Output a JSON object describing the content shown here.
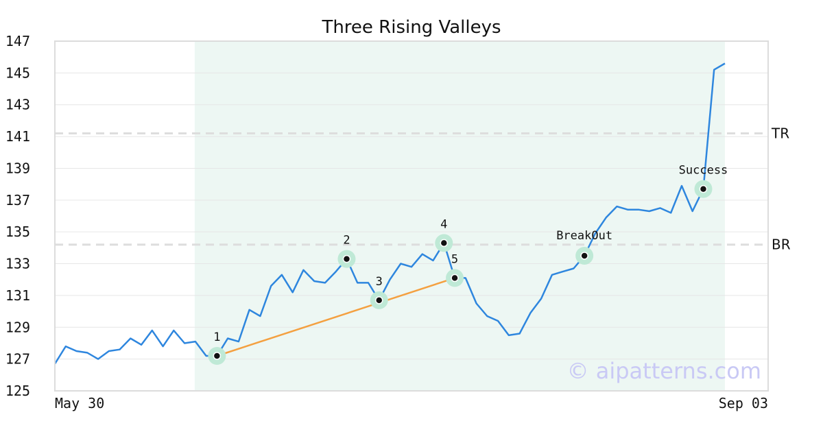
{
  "chart_data": {
    "type": "line",
    "title": "Three Rising Valleys",
    "ylim": [
      125,
      147
    ],
    "yticks": [
      "125",
      "127",
      "129",
      "131",
      "133",
      "135",
      "137",
      "139",
      "141",
      "143",
      "145",
      "147"
    ],
    "x_tick_labels": [
      "May 30",
      "Sep 03"
    ],
    "grid": "horizontal",
    "series": [
      {
        "color": "#2e86de",
        "values": [
          126.7,
          127.8,
          127.5,
          127.4,
          127.0,
          127.5,
          127.6,
          128.3,
          127.9,
          128.8,
          127.8,
          128.8,
          128.0,
          128.1,
          127.2,
          127.2,
          128.3,
          128.1,
          130.1,
          129.7,
          131.6,
          132.3,
          131.2,
          132.6,
          131.9,
          131.8,
          132.5,
          133.3,
          131.8,
          131.8,
          130.7,
          132.0,
          133.0,
          132.8,
          133.6,
          133.2,
          134.3,
          132.1,
          132.1,
          130.5,
          129.7,
          129.4,
          128.5,
          128.6,
          129.9,
          130.8,
          132.3,
          132.5,
          132.7,
          133.5,
          134.9,
          135.9,
          136.6,
          136.4,
          136.4,
          136.3,
          136.5,
          136.2,
          137.9,
          136.3,
          137.7,
          145.2,
          145.6
        ]
      }
    ],
    "shaded_range": {
      "start_index": 13,
      "end_index": 62,
      "color": "#edf7f3"
    },
    "reference_lines": [
      {
        "label": "TR",
        "value": 141.2
      },
      {
        "label": "BR",
        "value": 134.2
      }
    ],
    "trendline": {
      "from_point": "1",
      "to_point": "5",
      "color": "#f4a040"
    },
    "points": [
      {
        "label": "1",
        "index": 15,
        "value": 127.2
      },
      {
        "label": "2",
        "index": 27,
        "value": 133.3
      },
      {
        "label": "3",
        "index": 30,
        "value": 130.7
      },
      {
        "label": "4",
        "index": 36,
        "value": 134.3
      },
      {
        "label": "5",
        "index": 37,
        "value": 132.1
      },
      {
        "label": "BreakOut",
        "index": 49,
        "value": 133.5
      },
      {
        "label": "Success",
        "index": 60,
        "value": 137.7
      }
    ],
    "watermark": "© aipatterns.com"
  }
}
